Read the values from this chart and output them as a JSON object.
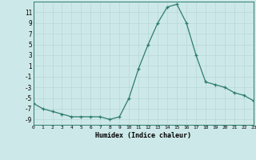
{
  "x": [
    0,
    1,
    2,
    3,
    4,
    5,
    6,
    7,
    8,
    9,
    10,
    11,
    12,
    13,
    14,
    15,
    16,
    17,
    18,
    19,
    20,
    21,
    22,
    23
  ],
  "y": [
    -6,
    -7,
    -7.5,
    -8,
    -8.5,
    -8.5,
    -8.5,
    -8.5,
    -9,
    -8.5,
    -5,
    0.5,
    5,
    9,
    12,
    12.5,
    9,
    3,
    -2,
    -2.5,
    -3,
    -4,
    -4.5,
    -5.5
  ],
  "xlabel": "Humidex (Indice chaleur)",
  "yticks": [
    -9,
    -7,
    -5,
    -3,
    -1,
    1,
    3,
    5,
    7,
    9,
    11
  ],
  "xtick_labels": [
    "0",
    "1",
    "2",
    "3",
    "4",
    "5",
    "6",
    "7",
    "8",
    "9",
    "10",
    "11",
    "12",
    "13",
    "14",
    "15",
    "16",
    "17",
    "18",
    "19",
    "20",
    "21",
    "22",
    "23"
  ],
  "xticks": [
    0,
    1,
    2,
    3,
    4,
    5,
    6,
    7,
    8,
    9,
    10,
    11,
    12,
    13,
    14,
    15,
    16,
    17,
    18,
    19,
    20,
    21,
    22,
    23
  ],
  "xlim": [
    0,
    23
  ],
  "ylim": [
    -10,
    13
  ],
  "line_color": "#2d7d6e",
  "bg_color": "#cde8e8",
  "grid_color": "#b8d8d8",
  "marker": "+"
}
